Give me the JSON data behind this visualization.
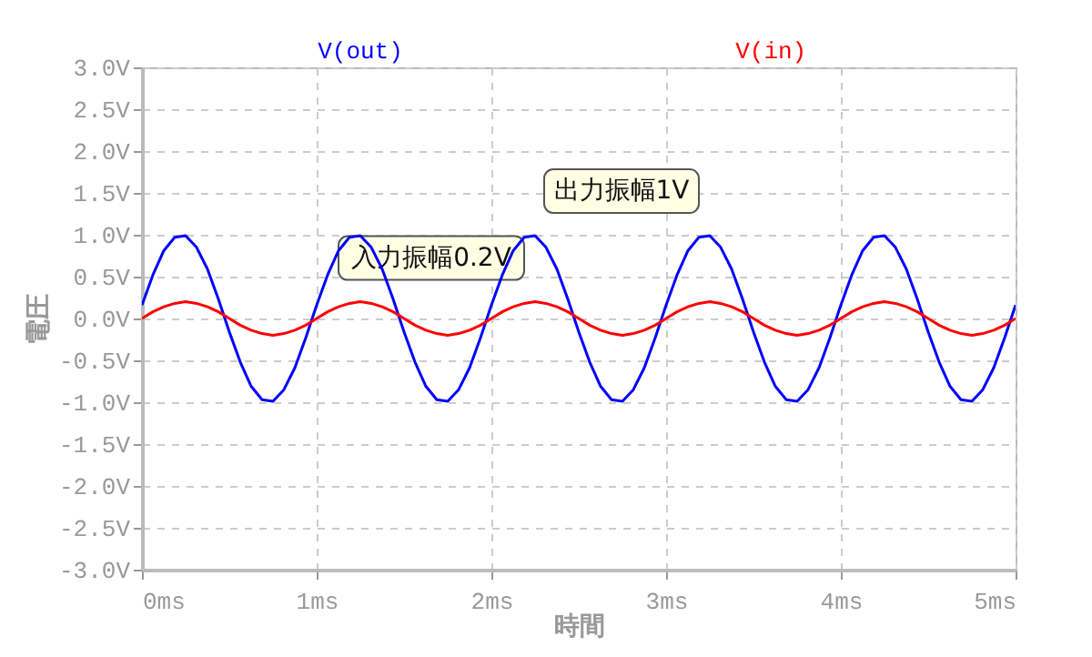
{
  "chart_data": {
    "type": "line",
    "xlabel": "時間",
    "ylabel": "電圧",
    "legend": "top",
    "grid": true,
    "line_style": "solid",
    "marker": "none",
    "x": [
      0,
      0.0625,
      0.125,
      0.1875,
      0.25,
      0.3125,
      0.375,
      0.4375,
      0.5,
      0.5625,
      0.625,
      0.6875,
      0.75,
      0.8125,
      0.875,
      0.9375,
      1,
      1.0625,
      1.125,
      1.1875,
      1.25,
      1.3125,
      1.375,
      1.4375,
      1.5,
      1.5625,
      1.625,
      1.6875,
      1.75,
      1.8125,
      1.875,
      1.9375,
      2,
      2.0625,
      2.125,
      2.1875,
      2.25,
      2.3125,
      2.375,
      2.4375,
      2.5,
      2.5625,
      2.625,
      2.6875,
      2.75,
      2.8125,
      2.875,
      2.9375,
      3,
      3.0625,
      3.125,
      3.1875,
      3.25,
      3.3125,
      3.375,
      3.4375,
      3.5,
      3.5625,
      3.625,
      3.6875,
      3.75,
      3.8125,
      3.875,
      3.9375,
      4,
      4.0625,
      4.125,
      4.1875,
      4.25,
      4.3125,
      4.375,
      4.4375,
      4.5,
      4.5625,
      4.625,
      4.6875,
      4.75,
      4.8125,
      4.875,
      4.9375,
      5
    ],
    "series": [
      {
        "name": "V(out)",
        "color": "#0000ff",
        "values": [
          0.16,
          0.52,
          0.81,
          0.97,
          0.99,
          0.85,
          0.59,
          0.23,
          -0.16,
          -0.52,
          -0.81,
          -0.97,
          -0.99,
          -0.85,
          -0.59,
          -0.23,
          0.16,
          0.52,
          0.81,
          0.97,
          0.99,
          0.85,
          0.59,
          0.23,
          -0.16,
          -0.52,
          -0.81,
          -0.97,
          -0.99,
          -0.85,
          -0.59,
          -0.23,
          0.16,
          0.52,
          0.81,
          0.97,
          0.99,
          0.85,
          0.59,
          0.23,
          -0.16,
          -0.52,
          -0.81,
          -0.97,
          -0.99,
          -0.85,
          -0.59,
          -0.23,
          0.16,
          0.52,
          0.81,
          0.97,
          0.99,
          0.85,
          0.59,
          0.23,
          -0.16,
          -0.52,
          -0.81,
          -0.97,
          -0.99,
          -0.85,
          -0.59,
          -0.23,
          0.16,
          0.52,
          0.81,
          0.97,
          0.99,
          0.85,
          0.59,
          0.23,
          -0.16,
          -0.52,
          -0.81,
          -0.97,
          -0.99,
          -0.85,
          -0.59,
          -0.23,
          0.16
        ]
      },
      {
        "name": "V(in)",
        "color": "#ff0000",
        "values": [
          0,
          0.08,
          0.14,
          0.18,
          0.2,
          0.18,
          0.14,
          0.08,
          0,
          -0.08,
          -0.14,
          -0.18,
          -0.2,
          -0.18,
          -0.14,
          -0.08,
          0,
          0.08,
          0.14,
          0.18,
          0.2,
          0.18,
          0.14,
          0.08,
          0,
          -0.08,
          -0.14,
          -0.18,
          -0.2,
          -0.18,
          -0.14,
          -0.08,
          0,
          0.08,
          0.14,
          0.18,
          0.2,
          0.18,
          0.14,
          0.08,
          0,
          -0.08,
          -0.14,
          -0.18,
          -0.2,
          -0.18,
          -0.14,
          -0.08,
          0,
          0.08,
          0.14,
          0.18,
          0.2,
          0.18,
          0.14,
          0.08,
          0,
          -0.08,
          -0.14,
          -0.18,
          -0.2,
          -0.18,
          -0.14,
          -0.08,
          0,
          0.08,
          0.14,
          0.18,
          0.2,
          0.18,
          0.14,
          0.08,
          0,
          -0.08,
          -0.14,
          -0.18,
          -0.2,
          -0.18,
          -0.14,
          -0.08,
          0
        ]
      }
    ],
    "xlim": [
      0,
      5
    ],
    "xticks": [
      {
        "value": 0,
        "label": "0ms"
      },
      {
        "value": 1,
        "label": "1ms"
      },
      {
        "value": 2,
        "label": "2ms"
      },
      {
        "value": 3,
        "label": "3ms"
      },
      {
        "value": 4,
        "label": "4ms"
      },
      {
        "value": 5,
        "label": "5ms"
      }
    ],
    "ylim": [
      -3,
      3
    ],
    "yticks": [
      {
        "value": -3,
        "label": "-3.0V"
      },
      {
        "value": -2.5,
        "label": "-2.5V"
      },
      {
        "value": -2,
        "label": "-2.0V"
      },
      {
        "value": -1.5,
        "label": "-1.5V"
      },
      {
        "value": -1,
        "label": "-1.0V"
      },
      {
        "value": -0.5,
        "label": "-0.5V"
      },
      {
        "value": 0,
        "label": "0.0V"
      },
      {
        "value": 0.5,
        "label": "0.5V"
      },
      {
        "value": 1,
        "label": "1.0V"
      },
      {
        "value": 1.5,
        "label": "1.5V"
      },
      {
        "value": 2,
        "label": "2.0V"
      },
      {
        "value": 2.5,
        "label": "2.5V"
      },
      {
        "value": 3,
        "label": "3.0V"
      }
    ],
    "annotations": [
      {
        "text": "出力振幅1V",
        "x": 3.25,
        "y": 1.0
      },
      {
        "text": "入力振幅0.2V",
        "x": 2.25,
        "y": 0.2
      }
    ]
  }
}
